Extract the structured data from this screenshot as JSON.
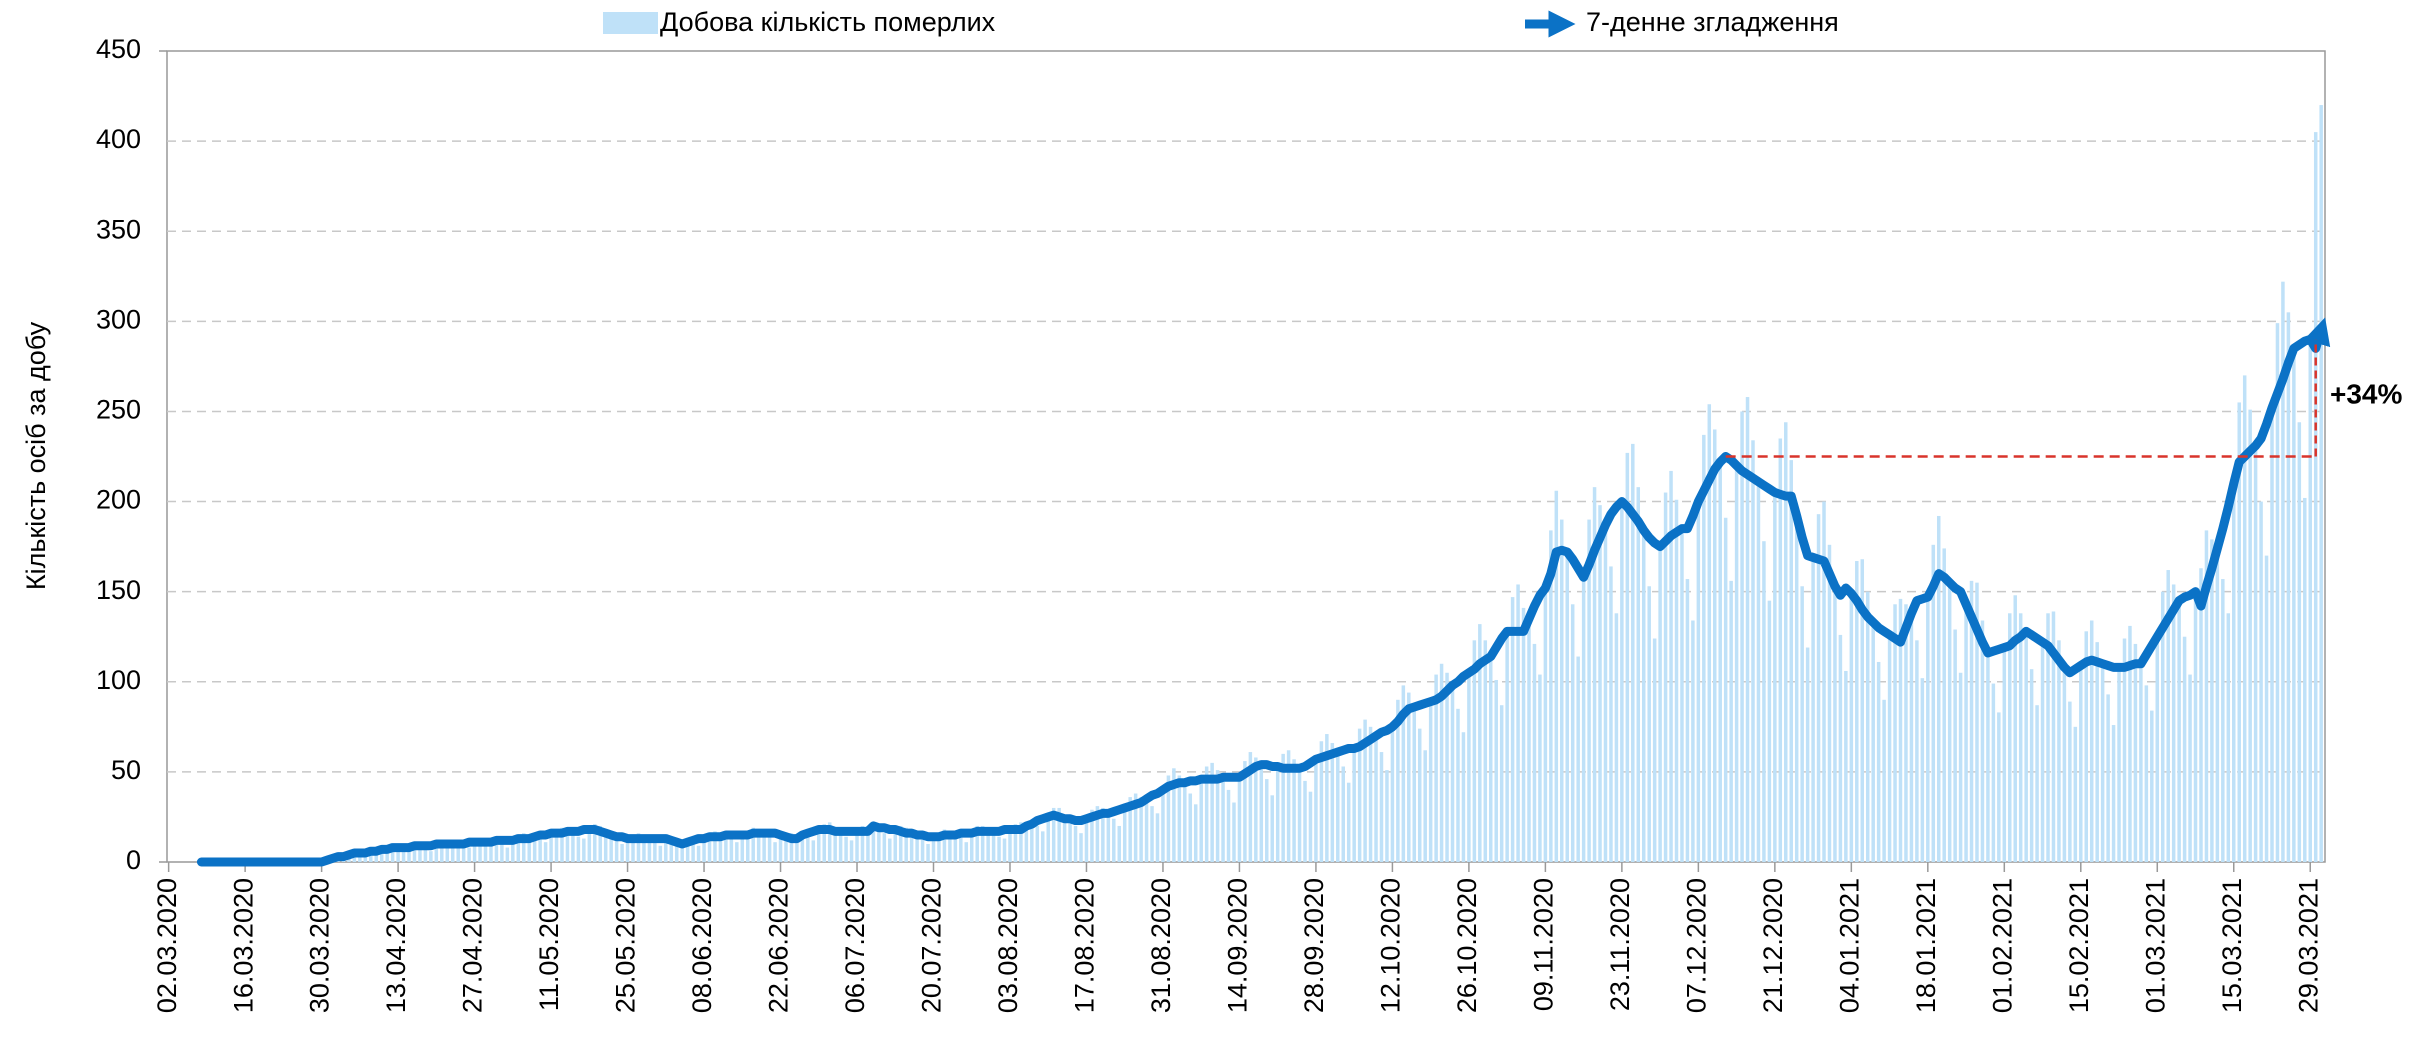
{
  "chart_data": {
    "type": "combo",
    "y_label": "Кількість осіб за добу",
    "ylim": [
      0,
      450
    ],
    "yticks": [
      0,
      50,
      100,
      150,
      200,
      250,
      300,
      350,
      400,
      450
    ],
    "grid": true,
    "legend": "top",
    "categories": [
      "02.03.2020",
      null,
      null,
      null,
      null,
      null,
      null,
      null,
      null,
      null,
      null,
      null,
      null,
      null,
      "16.03.2020",
      null,
      null,
      null,
      null,
      null,
      null,
      null,
      null,
      null,
      null,
      null,
      null,
      null,
      "30.03.2020",
      null,
      null,
      null,
      null,
      null,
      null,
      null,
      null,
      null,
      null,
      null,
      null,
      null,
      "13.04.2020",
      null,
      null,
      null,
      null,
      null,
      null,
      null,
      null,
      null,
      null,
      null,
      null,
      null,
      "27.04.2020",
      null,
      null,
      null,
      null,
      null,
      null,
      null,
      null,
      null,
      null,
      null,
      null,
      null,
      "11.05.2020",
      null,
      null,
      null,
      null,
      null,
      null,
      null,
      null,
      null,
      null,
      null,
      null,
      null,
      "25.05.2020",
      null,
      null,
      null,
      null,
      null,
      null,
      null,
      null,
      null,
      null,
      null,
      null,
      null,
      "08.06.2020",
      null,
      null,
      null,
      null,
      null,
      null,
      null,
      null,
      null,
      null,
      null,
      null,
      null,
      "22.06.2020",
      null,
      null,
      null,
      null,
      null,
      null,
      null,
      null,
      null,
      null,
      null,
      null,
      null,
      "06.07.2020",
      null,
      null,
      null,
      null,
      null,
      null,
      null,
      null,
      null,
      null,
      null,
      null,
      null,
      "20.07.2020",
      null,
      null,
      null,
      null,
      null,
      null,
      null,
      null,
      null,
      null,
      null,
      null,
      null,
      "03.08.2020",
      null,
      null,
      null,
      null,
      null,
      null,
      null,
      null,
      null,
      null,
      null,
      null,
      null,
      "17.08.2020",
      null,
      null,
      null,
      null,
      null,
      null,
      null,
      null,
      null,
      null,
      null,
      null,
      null,
      "31.08.2020",
      null,
      null,
      null,
      null,
      null,
      null,
      null,
      null,
      null,
      null,
      null,
      null,
      null,
      "14.09.2020",
      null,
      null,
      null,
      null,
      null,
      null,
      null,
      null,
      null,
      null,
      null,
      null,
      null,
      "28.09.2020",
      null,
      null,
      null,
      null,
      null,
      null,
      null,
      null,
      null,
      null,
      null,
      null,
      null,
      "12.10.2020",
      null,
      null,
      null,
      null,
      null,
      null,
      null,
      null,
      null,
      null,
      null,
      null,
      null,
      "26.10.2020",
      null,
      null,
      null,
      null,
      null,
      null,
      null,
      null,
      null,
      null,
      null,
      null,
      null,
      "09.11.2020",
      null,
      null,
      null,
      null,
      null,
      null,
      null,
      null,
      null,
      null,
      null,
      null,
      null,
      "23.11.2020",
      null,
      null,
      null,
      null,
      null,
      null,
      null,
      null,
      null,
      null,
      null,
      null,
      null,
      "07.12.2020",
      null,
      null,
      null,
      null,
      null,
      null,
      null,
      null,
      null,
      null,
      null,
      null,
      null,
      "21.12.2020",
      null,
      null,
      null,
      null,
      null,
      null,
      null,
      null,
      null,
      null,
      null,
      null,
      null,
      "04.01.2021",
      null,
      null,
      null,
      null,
      null,
      null,
      null,
      null,
      null,
      null,
      null,
      null,
      null,
      "18.01.2021",
      null,
      null,
      null,
      null,
      null,
      null,
      null,
      null,
      null,
      null,
      null,
      null,
      null,
      "01.02.2021",
      null,
      null,
      null,
      null,
      null,
      null,
      null,
      null,
      null,
      null,
      null,
      null,
      null,
      "15.02.2021",
      null,
      null,
      null,
      null,
      null,
      null,
      null,
      null,
      null,
      null,
      null,
      null,
      null,
      "01.03.2021",
      null,
      null,
      null,
      null,
      null,
      null,
      null,
      null,
      null,
      null,
      null,
      null,
      null,
      "15.03.2021",
      null,
      null,
      null,
      null,
      null,
      null,
      null,
      null,
      null,
      null,
      null,
      null,
      null,
      "29.03.2021",
      null,
      null
    ],
    "series": [
      {
        "name": "Добова кількість померлих",
        "type": "bar",
        "color": "#bfe1f8",
        "values": [
          null,
          null,
          null,
          null,
          null,
          null,
          0,
          0,
          0,
          0,
          0,
          0,
          0,
          0,
          0,
          0,
          0,
          0,
          0,
          0,
          0,
          0,
          0,
          0,
          0,
          0,
          0,
          0,
          0,
          1,
          2,
          3,
          3,
          3,
          4,
          5,
          6,
          7,
          7,
          7,
          6,
          6,
          8,
          9,
          10,
          10,
          9,
          8,
          6,
          10,
          12,
          12,
          11,
          10,
          9,
          8,
          11,
          13,
          13,
          12,
          12,
          10,
          8,
          12,
          15,
          16,
          14,
          14,
          13,
          11,
          16,
          18,
          19,
          19,
          17,
          14,
          13,
          18,
          21,
          20,
          18,
          15,
          12,
          10,
          13,
          15,
          16,
          14,
          13,
          11,
          9,
          13,
          14,
          13,
          11,
          11,
          10,
          9,
          13,
          16,
          17,
          15,
          15,
          13,
          11,
          15,
          17,
          19,
          18,
          16,
          14,
          11,
          15,
          16,
          16,
          14,
          15,
          14,
          12,
          18,
          21,
          22,
          19,
          17,
          14,
          12,
          17,
          20,
          20,
          22,
          19,
          16,
          13,
          18,
          20,
          19,
          17,
          15,
          13,
          10,
          14,
          16,
          18,
          17,
          15,
          14,
          11,
          16,
          20,
          20,
          19,
          17,
          14,
          13,
          18,
          21,
          22,
          22,
          21,
          20,
          17,
          25,
          30,
          30,
          26,
          24,
          20,
          16,
          24,
          29,
          31,
          30,
          27,
          24,
          20,
          30,
          36,
          38,
          36,
          35,
          31,
          27,
          40,
          48,
          52,
          48,
          44,
          38,
          32,
          46,
          53,
          55,
          51,
          47,
          40,
          33,
          47,
          56,
          61,
          58,
          54,
          46,
          37,
          53,
          60,
          62,
          57,
          52,
          45,
          39,
          57,
          67,
          71,
          66,
          61,
          53,
          44,
          63,
          74,
          79,
          75,
          70,
          61,
          51,
          75,
          90,
          98,
          94,
          86,
          74,
          62,
          89,
          104,
          110,
          105,
          98,
          85,
          72,
          105,
          123,
          132,
          123,
          114,
          101,
          87,
          128,
          147,
          154,
          141,
          135,
          121,
          104,
          152,
          184,
          206,
          190,
          172,
          143,
          114,
          158,
          190,
          208,
          198,
          187,
          164,
          138,
          200,
          227,
          232,
          208,
          184,
          153,
          124,
          175,
          205,
          217,
          201,
          185,
          157,
          134,
          200,
          237,
          254,
          240,
          222,
          191,
          156,
          220,
          250,
          258,
          234,
          211,
          178,
          145,
          205,
          235,
          244,
          223,
          192,
          153,
          119,
          169,
          193,
          200,
          176,
          153,
          126,
          106,
          149,
          167,
          168,
          150,
          133,
          111,
          90,
          126,
          143,
          146,
          143,
          138,
          123,
          102,
          147,
          176,
          192,
          174,
          155,
          129,
          105,
          143,
          156,
          155,
          134,
          116,
          99,
          83,
          119,
          138,
          148,
          138,
          128,
          107,
          87,
          122,
          138,
          139,
          123,
          108,
          89,
          75,
          109,
          128,
          134,
          122,
          110,
          93,
          76,
          108,
          124,
          131,
          121,
          110,
          98,
          84,
          125,
          150,
          162,
          154,
          145,
          125,
          104,
          150,
          163,
          184,
          179,
          174,
          157,
          138,
          210,
          255,
          270,
          251,
          231,
          200,
          170,
          252,
          299,
          322,
          305,
          285,
          244,
          202,
          290,
          405,
          420
        ]
      },
      {
        "name": "7-денне згладження",
        "type": "line",
        "color": "#0b72c6",
        "values": [
          null,
          null,
          null,
          null,
          null,
          null,
          0,
          0,
          0,
          0,
          0,
          0,
          0,
          0,
          0,
          0,
          0,
          0,
          0,
          0,
          0,
          0,
          0,
          0,
          0,
          0,
          0,
          0,
          0,
          1,
          2,
          3,
          3,
          4,
          5,
          5,
          5,
          6,
          6,
          7,
          7,
          8,
          8,
          8,
          8,
          9,
          9,
          9,
          9,
          10,
          10,
          10,
          10,
          10,
          10,
          11,
          11,
          11,
          11,
          11,
          12,
          12,
          12,
          12,
          13,
          13,
          13,
          14,
          15,
          15,
          16,
          16,
          16,
          17,
          17,
          17,
          18,
          18,
          18,
          17,
          16,
          15,
          14,
          14,
          13,
          13,
          13,
          13,
          13,
          13,
          13,
          13,
          12,
          11,
          10,
          11,
          12,
          13,
          13,
          14,
          14,
          14,
          15,
          15,
          15,
          15,
          15,
          16,
          16,
          16,
          16,
          16,
          15,
          14,
          13,
          13,
          15,
          16,
          17,
          18,
          18,
          18,
          17,
          17,
          17,
          17,
          17,
          17,
          17,
          20,
          19,
          19,
          18,
          18,
          17,
          16,
          16,
          15,
          15,
          14,
          14,
          14,
          15,
          15,
          15,
          16,
          16,
          16,
          17,
          17,
          17,
          17,
          17,
          18,
          18,
          18,
          18,
          20,
          21,
          23,
          24,
          25,
          26,
          25,
          24,
          24,
          23,
          23,
          24,
          25,
          26,
          27,
          27,
          28,
          29,
          30,
          31,
          32,
          33,
          35,
          37,
          38,
          40,
          42,
          43,
          44,
          44,
          45,
          45,
          46,
          46,
          46,
          46,
          47,
          47,
          47,
          47,
          49,
          51,
          53,
          54,
          54,
          53,
          53,
          52,
          52,
          52,
          52,
          53,
          55,
          57,
          58,
          59,
          60,
          61,
          62,
          63,
          63,
          64,
          66,
          68,
          70,
          72,
          73,
          75,
          78,
          82,
          85,
          86,
          87,
          88,
          89,
          90,
          92,
          95,
          98,
          100,
          103,
          105,
          107,
          110,
          112,
          114,
          119,
          124,
          128,
          128,
          128,
          128,
          135,
          142,
          148,
          152,
          160,
          172,
          173,
          172,
          168,
          163,
          158,
          165,
          173,
          180,
          187,
          193,
          197,
          200,
          197,
          193,
          189,
          184,
          180,
          177,
          175,
          178,
          181,
          183,
          185,
          185,
          192,
          200,
          206,
          212,
          218,
          222,
          225,
          223,
          220,
          217,
          215,
          213,
          211,
          209,
          207,
          205,
          204,
          203,
          203,
          192,
          180,
          170,
          169,
          168,
          167,
          160,
          153,
          148,
          152,
          149,
          145,
          140,
          136,
          133,
          130,
          128,
          126,
          124,
          122,
          130,
          138,
          145,
          146,
          147,
          153,
          160,
          158,
          155,
          152,
          150,
          143,
          136,
          129,
          122,
          116,
          117,
          118,
          119,
          120,
          123,
          125,
          128,
          126,
          124,
          122,
          120,
          116,
          112,
          108,
          105,
          107,
          109,
          111,
          112,
          111,
          110,
          109,
          108,
          108,
          108,
          109,
          110,
          110,
          115,
          120,
          125,
          130,
          135,
          140,
          145,
          147,
          148,
          150,
          142,
          153,
          163,
          174,
          185,
          197,
          210,
          222,
          225,
          228,
          231,
          235,
          243,
          252,
          260,
          268,
          277,
          285,
          287,
          289,
          290,
          285,
          295
        ]
      }
    ],
    "annotation": {
      "label": "+34%",
      "color": "#d9342b",
      "from_value": 225,
      "to_value": 290,
      "from_index": 285,
      "to_index": 393
    }
  }
}
